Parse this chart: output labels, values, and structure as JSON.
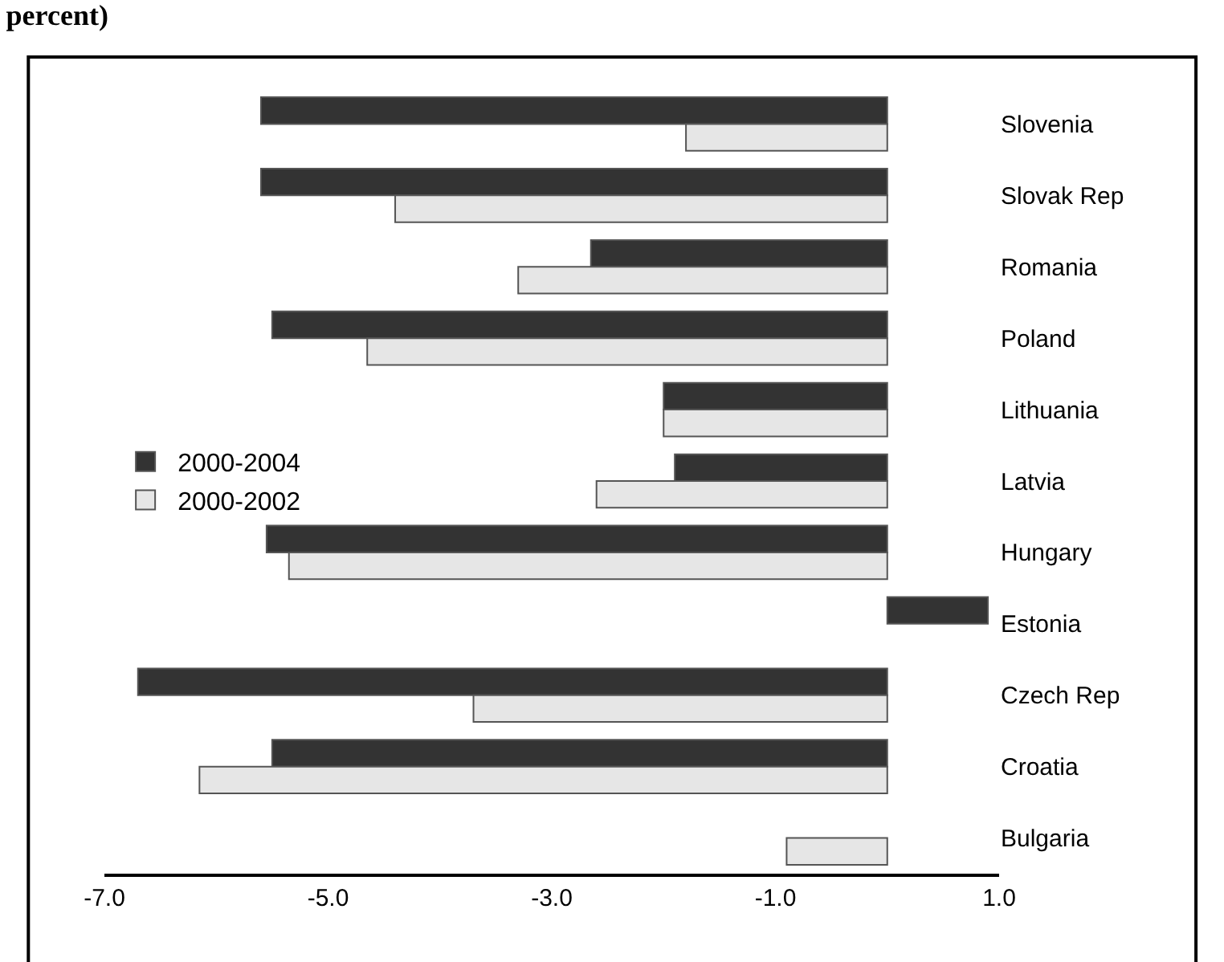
{
  "chart_data": {
    "type": "bar",
    "orientation": "horizontal",
    "title": "percent)",
    "categories": [
      "Slovenia",
      "Slovak Rep",
      "Romania",
      "Poland",
      "Lithuania",
      "Latvia",
      "Hungary",
      "Estonia",
      "Czech Rep",
      "Croatia",
      "Bulgaria"
    ],
    "series": [
      {
        "name": "2000-2004",
        "color": "#333333",
        "values": [
          -5.6,
          -5.6,
          -2.65,
          -5.5,
          -2.0,
          -1.9,
          -5.55,
          0.9,
          -6.7,
          -5.5,
          null
        ]
      },
      {
        "name": "2000-2002",
        "color": "#e6e6e6",
        "values": [
          -1.8,
          -4.4,
          -3.3,
          -4.65,
          -2.0,
          -2.6,
          -5.35,
          null,
          -3.7,
          -6.15,
          -0.9
        ]
      }
    ],
    "xlim": [
      -7,
      1
    ],
    "xticks": [
      {
        "value": -7,
        "label": "-7.0"
      },
      {
        "value": -5,
        "label": "-5.0"
      },
      {
        "value": -3,
        "label": "-3.0"
      },
      {
        "value": -1,
        "label": "-1.0"
      },
      {
        "value": 1,
        "label": "1.0"
      }
    ],
    "grid": false,
    "legend": "left"
  }
}
